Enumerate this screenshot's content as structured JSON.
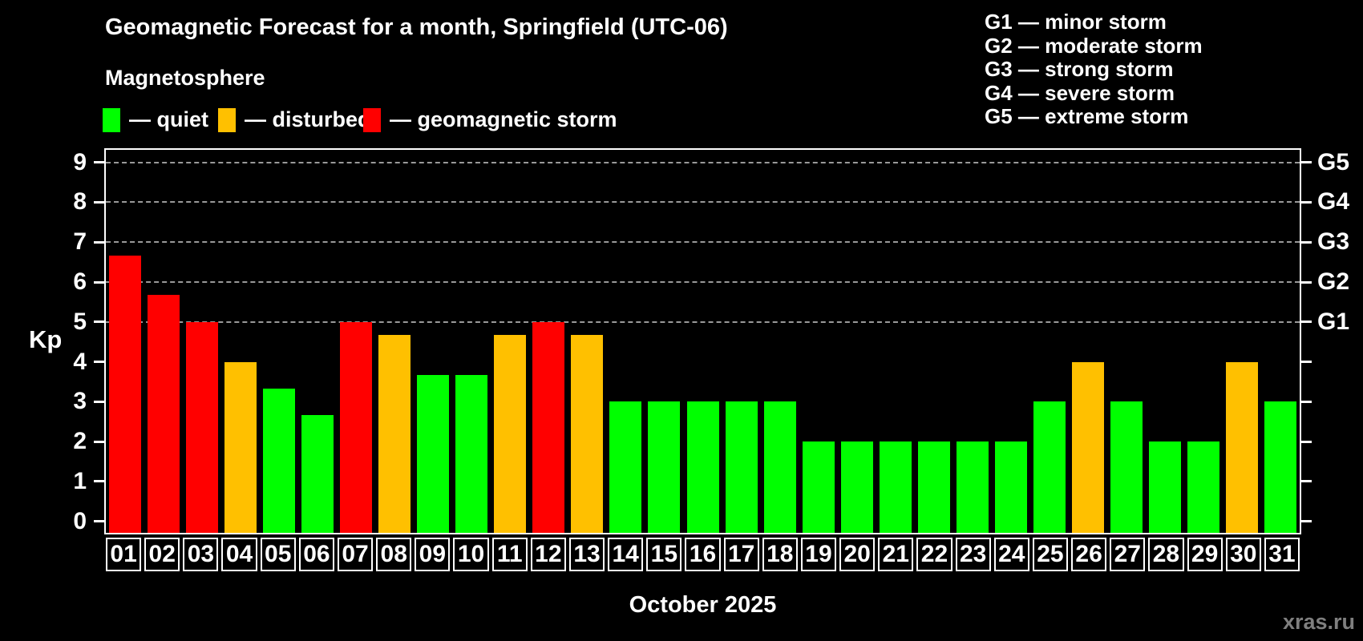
{
  "header": {
    "title": "Geomagnetic Forecast for a month, Springfield (UTC-06)",
    "subtitle": "Magnetosphere",
    "legend": [
      {
        "name": "quiet",
        "label": "— quiet",
        "color": "#00ff00"
      },
      {
        "name": "disturbed",
        "label": "— disturbed",
        "color": "#ffc000"
      },
      {
        "name": "storm",
        "label": "— geomagnetic storm",
        "color": "#ff0000"
      }
    ],
    "storm_scale": [
      "G1 — minor storm",
      "G2 — moderate storm",
      "G3 — strong storm",
      "G4 — severe storm",
      "G5 — extreme storm"
    ]
  },
  "chart_data": {
    "type": "bar",
    "title": "Geomagnetic Forecast for a month, Springfield (UTC-06)",
    "xlabel": "October 2025",
    "ylabel": "Kp",
    "ylim": [
      0,
      9
    ],
    "yticks": [
      0,
      1,
      2,
      3,
      4,
      5,
      6,
      7,
      8,
      9
    ],
    "gridlines_at_kp": [
      5,
      6,
      7,
      8,
      9
    ],
    "grid_style": "horizontal dashed gray at storm levels only",
    "legend_position": "top-left",
    "right_axis": [
      {
        "kp": 5,
        "label": "G1"
      },
      {
        "kp": 6,
        "label": "G2"
      },
      {
        "kp": 7,
        "label": "G3"
      },
      {
        "kp": 8,
        "label": "G4"
      },
      {
        "kp": 9,
        "label": "G5"
      }
    ],
    "categories": [
      "01",
      "02",
      "03",
      "04",
      "05",
      "06",
      "07",
      "08",
      "09",
      "10",
      "11",
      "12",
      "13",
      "14",
      "15",
      "16",
      "17",
      "18",
      "19",
      "20",
      "21",
      "22",
      "23",
      "24",
      "25",
      "26",
      "27",
      "28",
      "29",
      "30",
      "31"
    ],
    "values": [
      6.67,
      5.67,
      5,
      4,
      3.33,
      2.67,
      5,
      4.67,
      3.67,
      3.67,
      4.67,
      5,
      4.67,
      3,
      3,
      3,
      3,
      3,
      2,
      2,
      2,
      2,
      2,
      2,
      3,
      4,
      3,
      2,
      2,
      4,
      3
    ],
    "statuses": [
      "storm",
      "storm",
      "storm",
      "disturbed",
      "quiet",
      "quiet",
      "storm",
      "disturbed",
      "quiet",
      "quiet",
      "disturbed",
      "storm",
      "disturbed",
      "quiet",
      "quiet",
      "quiet",
      "quiet",
      "quiet",
      "quiet",
      "quiet",
      "quiet",
      "quiet",
      "quiet",
      "quiet",
      "quiet",
      "disturbed",
      "quiet",
      "quiet",
      "quiet",
      "disturbed",
      "quiet"
    ],
    "status_colors": {
      "quiet": "#00ff00",
      "disturbed": "#ffc000",
      "storm": "#ff0000"
    }
  },
  "footer": {
    "month_label": "October 2025",
    "watermark": "xras.ru"
  }
}
